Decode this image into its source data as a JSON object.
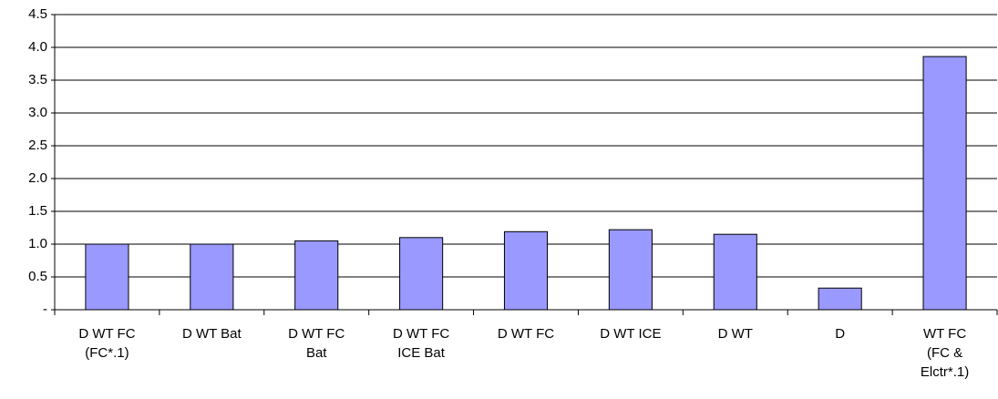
{
  "chart_data": {
    "type": "bar",
    "categories": [
      "D WT FC\n(FC*.1)",
      "D WT Bat",
      "D WT FC\nBat",
      "D WT FC\nICE Bat",
      "D WT FC",
      "D WT ICE",
      "D WT",
      "D",
      "WT FC\n(FC &\nElctr*.1)"
    ],
    "values": [
      1.0,
      1.0,
      1.05,
      1.1,
      1.19,
      1.22,
      1.15,
      0.33,
      3.86
    ],
    "color": "#9999ff",
    "ylim": [
      0,
      4.5
    ],
    "yticks": [
      {
        "value": 0,
        "label": "-"
      },
      0.5,
      {
        "value": 1,
        "label": "1.0"
      },
      1.5,
      {
        "value": 2,
        "label": "2.0"
      },
      2.5,
      {
        "value": 3,
        "label": "3.0"
      },
      3.5,
      {
        "value": 4,
        "label": "4.0"
      },
      4.5
    ],
    "grid": true
  }
}
